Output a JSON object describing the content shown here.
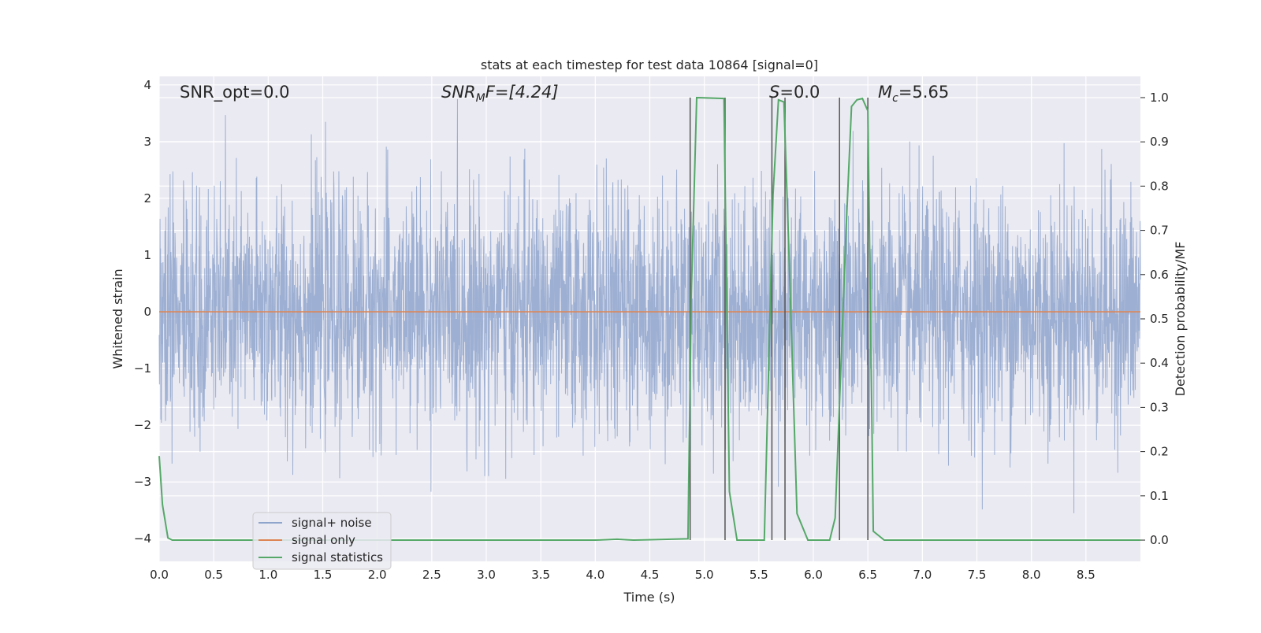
{
  "chart_data": {
    "type": "line",
    "title": "stats at each timestep for test data 10864 [signal=0]",
    "xlabel": "Time (s)",
    "ylabel": "Whitened strain",
    "ylabel_right": "Detection probability/MF",
    "xlim": [
      0.0,
      9.0
    ],
    "ylim": [
      -4.4,
      4.15
    ],
    "ylim_right": [
      -0.048,
      1.048
    ],
    "grid": true,
    "legend_placement": "lower-left",
    "x_ticks": [
      "0.0",
      "0.5",
      "1.0",
      "1.5",
      "2.0",
      "2.5",
      "3.0",
      "3.5",
      "4.0",
      "4.5",
      "5.0",
      "5.5",
      "6.0",
      "6.5",
      "7.0",
      "7.5",
      "8.0",
      "8.5"
    ],
    "y_ticks": [
      "4",
      "3",
      "2",
      "1",
      "0",
      "−1",
      "−2",
      "−3",
      "−4"
    ],
    "y_ticks_right": [
      "1.0",
      "0.9",
      "0.8",
      "0.7",
      "0.6",
      "0.5",
      "0.4",
      "0.3",
      "0.2",
      "0.1",
      "0.0"
    ],
    "annotations": {
      "snr_opt": "SNR_opt=0.0",
      "snr_mf_main": "SNR",
      "snr_mf_sub": "M",
      "snr_mf_rest": "F=[4.24]",
      "s_main": "S",
      "s_rest": "=0.0",
      "mc_main": "M",
      "mc_sub": "c",
      "mc_rest": "=5.65"
    },
    "series": [
      {
        "name": "signal+ noise",
        "color": "#8fa5cc",
        "axis": "left",
        "description_note": "whitened noise, roughly ±1.5 with peaks near ±3.7",
        "amplitude_envelope": [
          -4.0,
          3.75
        ]
      },
      {
        "name": "signal only",
        "color": "#dd8452",
        "axis": "left",
        "x": [
          0.0,
          9.0
        ],
        "y": [
          0.0,
          0.0
        ]
      },
      {
        "name": "signal statistics",
        "color": "#55a868",
        "axis": "right",
        "x": [
          0.0,
          0.03,
          0.08,
          0.12,
          4.0,
          4.2,
          4.35,
          4.85,
          4.88,
          4.93,
          5.18,
          5.23,
          5.3,
          5.55,
          5.63,
          5.68,
          5.73,
          5.78,
          5.85,
          5.95,
          6.15,
          6.2,
          6.3,
          6.35,
          6.4,
          6.45,
          6.5,
          6.55,
          6.6,
          6.65,
          9.0
        ],
        "y": [
          0.19,
          0.08,
          0.005,
          0.0,
          0.0,
          0.002,
          0.0,
          0.003,
          0.55,
          1.0,
          0.998,
          0.11,
          0.0,
          0.0,
          0.78,
          0.995,
          0.99,
          0.62,
          0.06,
          0.0,
          0.0,
          0.05,
          0.7,
          0.98,
          0.995,
          0.998,
          0.97,
          0.02,
          0.01,
          0.0,
          0.0
        ]
      }
    ],
    "threshold_lines": {
      "color": "#555555",
      "x": [
        4.87,
        5.19,
        5.62,
        5.74,
        6.24,
        6.5
      ]
    }
  },
  "legend": {
    "items": [
      {
        "label": "signal+ noise",
        "color": "#8fa5cc"
      },
      {
        "label": "signal only",
        "color": "#dd8452"
      },
      {
        "label": "signal statistics",
        "color": "#55a868"
      }
    ]
  }
}
